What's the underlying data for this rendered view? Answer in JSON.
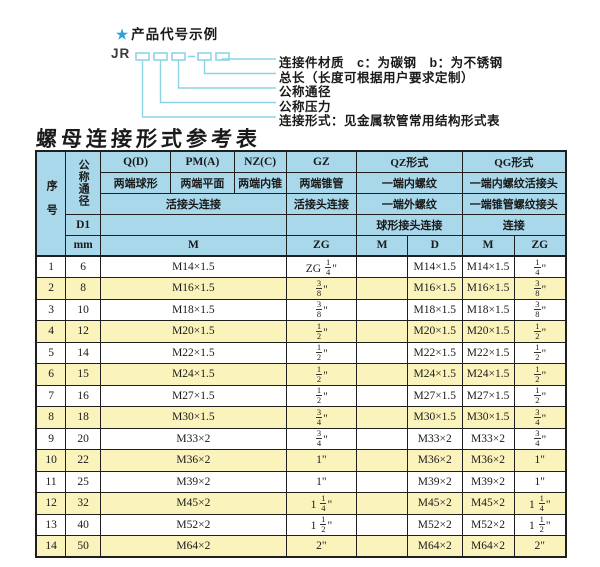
{
  "diagram": {
    "star": "★",
    "heading": "产品代号示例",
    "prefix": "JR",
    "labels": [
      "连接件材质　c：为碳钢　b：为不锈钢",
      "总长（长度可根据用户要求定制）",
      "公称通径",
      "公称压力",
      "连接形式：见金属软管常用结构形式表"
    ]
  },
  "table": {
    "title": "螺母连接形式参考表",
    "header": {
      "seq": "序号",
      "dn": "公称通径",
      "d1": "D1",
      "unit": "mm",
      "col_q": "Q(D)",
      "col_pm": "PM(A)",
      "col_nz": "NZ(C)",
      "col_gz": "GZ",
      "col_qz": "QZ形式",
      "col_qg": "QG形式",
      "q_desc": "两端球形",
      "pm_desc": "两端平面",
      "nz_desc": "两端内锥",
      "gz_desc": "两端锥管",
      "qz_desc1": "一端内螺纹",
      "qg_desc1": "一端内螺纹活接头",
      "union_conn": "活接头连接",
      "gz_conn": "活接头连接",
      "qz_desc2": "一端外螺纹",
      "qg_desc2": "一端锥管螺纹接头",
      "qz_conn": "球形接头连接",
      "qg_conn": "连接",
      "m_unit": "M",
      "zg_unit": "ZG",
      "qz_m": "M",
      "qz_d": "D",
      "qg_m": "M",
      "qg_zg": "ZG"
    },
    "rows": [
      {
        "seq": "1",
        "dn": "6",
        "m": "M14×1.5",
        "gz": "ZG 1/4\"",
        "qz_m": "",
        "qz_d": "M14×1.5",
        "qg_m": "M14×1.5",
        "qg_zg": "1/4\""
      },
      {
        "seq": "2",
        "dn": "8",
        "m": "M16×1.5",
        "gz": "3/8\"",
        "qz_m": "",
        "qz_d": "M16×1.5",
        "qg_m": "M16×1.5",
        "qg_zg": "3/8\""
      },
      {
        "seq": "3",
        "dn": "10",
        "m": "M18×1.5",
        "gz": "3/8\"",
        "qz_m": "",
        "qz_d": "M18×1.5",
        "qg_m": "M18×1.5",
        "qg_zg": "3/8\""
      },
      {
        "seq": "4",
        "dn": "12",
        "m": "M20×1.5",
        "gz": "1/2\"",
        "qz_m": "",
        "qz_d": "M20×1.5",
        "qg_m": "M20×1.5",
        "qg_zg": "1/2\""
      },
      {
        "seq": "5",
        "dn": "14",
        "m": "M22×1.5",
        "gz": "1/2\"",
        "qz_m": "",
        "qz_d": "M22×1.5",
        "qg_m": "M22×1.5",
        "qg_zg": "1/2\""
      },
      {
        "seq": "6",
        "dn": "15",
        "m": "M24×1.5",
        "gz": "1/2\"",
        "qz_m": "",
        "qz_d": "M24×1.5",
        "qg_m": "M24×1.5",
        "qg_zg": "1/2\""
      },
      {
        "seq": "7",
        "dn": "16",
        "m": "M27×1.5",
        "gz": "1/2\"",
        "qz_m": "",
        "qz_d": "M27×1.5",
        "qg_m": "M27×1.5",
        "qg_zg": "1/2\""
      },
      {
        "seq": "8",
        "dn": "18",
        "m": "M30×1.5",
        "gz": "3/4\"",
        "qz_m": "",
        "qz_d": "M30×1.5",
        "qg_m": "M30×1.5",
        "qg_zg": "3/4\""
      },
      {
        "seq": "9",
        "dn": "20",
        "m": "M33×2",
        "gz": "3/4\"",
        "qz_m": "",
        "qz_d": "M33×2",
        "qg_m": "M33×2",
        "qg_zg": "3/4\""
      },
      {
        "seq": "10",
        "dn": "22",
        "m": "M36×2",
        "gz": "1\"",
        "qz_m": "",
        "qz_d": "M36×2",
        "qg_m": "M36×2",
        "qg_zg": "1\""
      },
      {
        "seq": "11",
        "dn": "25",
        "m": "M39×2",
        "gz": "1\"",
        "qz_m": "",
        "qz_d": "M39×2",
        "qg_m": "M39×2",
        "qg_zg": "1\""
      },
      {
        "seq": "12",
        "dn": "32",
        "m": "M45×2",
        "gz": "1 1/4\"",
        "qz_m": "",
        "qz_d": "M45×2",
        "qg_m": "M45×2",
        "qg_zg": "1 1/4\""
      },
      {
        "seq": "13",
        "dn": "40",
        "m": "M52×2",
        "gz": "1 1/2\"",
        "qz_m": "",
        "qz_d": "M52×2",
        "qg_m": "M52×2",
        "qg_zg": "1 1/2\""
      },
      {
        "seq": "14",
        "dn": "50",
        "m": "M64×2",
        "gz": "2\"",
        "qz_m": "",
        "qz_d": "M64×2",
        "qg_m": "M64×2",
        "qg_zg": "2\""
      }
    ]
  },
  "colors": {
    "header_bg": "#a9d8ea",
    "row_alt": "#faf3bc",
    "diagram_line": "#8fd4e6",
    "star": "#2aa1d8",
    "border": "#1f1f1f",
    "text": "#1a1a1a"
  }
}
